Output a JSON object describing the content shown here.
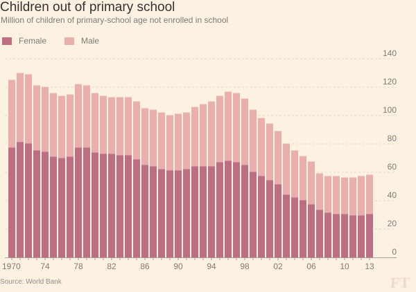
{
  "chart_data": {
    "type": "bar",
    "stacked": true,
    "title": "Children out of primary school",
    "subtitle": "Million of children of primary-school age not enrolled in school",
    "xlabel": "",
    "ylabel": "",
    "ylim": [
      0,
      140
    ],
    "yticks": [
      0,
      20,
      40,
      60,
      80,
      100,
      120,
      140
    ],
    "grid": true,
    "legend_position": "top-left",
    "categories": [
      1970,
      1971,
      1972,
      1973,
      1974,
      1975,
      1976,
      1977,
      1978,
      1979,
      1980,
      1981,
      1982,
      1983,
      1984,
      1985,
      1986,
      1987,
      1988,
      1989,
      1990,
      1991,
      1992,
      1993,
      1994,
      1995,
      1996,
      1997,
      1998,
      1999,
      2000,
      2001,
      2002,
      2003,
      2004,
      2005,
      2006,
      2007,
      2008,
      2009,
      2010,
      2011,
      2012,
      2013
    ],
    "xtick_labels": [
      {
        "year": 1970,
        "label": "1970"
      },
      {
        "year": 1974,
        "label": "74"
      },
      {
        "year": 1978,
        "label": "78"
      },
      {
        "year": 1982,
        "label": "82"
      },
      {
        "year": 1986,
        "label": "86"
      },
      {
        "year": 1990,
        "label": "90"
      },
      {
        "year": 1994,
        "label": "94"
      },
      {
        "year": 1998,
        "label": "98"
      },
      {
        "year": 2002,
        "label": "02"
      },
      {
        "year": 2006,
        "label": "06"
      },
      {
        "year": 2010,
        "label": "10"
      },
      {
        "year": 2013,
        "label": "13"
      }
    ],
    "series": [
      {
        "name": "Female",
        "color": "#bd6e82",
        "values": [
          77.6,
          81.5,
          80.5,
          75.6,
          74.6,
          71.2,
          70.2,
          71.2,
          77.6,
          77.6,
          74.1,
          73.2,
          73.2,
          72.2,
          72.2,
          69.3,
          65.4,
          64.4,
          62.4,
          61.5,
          61.5,
          62.4,
          64.4,
          64.4,
          64.4,
          67.3,
          68.3,
          67.3,
          65.4,
          60.5,
          57.6,
          54.6,
          51.7,
          44.4,
          42.4,
          40.5,
          37.6,
          33.7,
          31.7,
          30.7,
          30.7,
          29.8,
          29.8,
          30.7
        ]
      },
      {
        "name": "Male",
        "color": "#e9afad",
        "values": [
          47.8,
          48.7,
          48.8,
          45.9,
          45.9,
          44.9,
          43.9,
          43.9,
          44.8,
          43.9,
          42.0,
          40.9,
          40.0,
          41.0,
          41.0,
          40.9,
          40.0,
          40.0,
          40.0,
          39.0,
          40.0,
          40.0,
          41.9,
          43.9,
          45.8,
          46.8,
          48.8,
          48.8,
          46.8,
          43.9,
          40.9,
          40.0,
          37.6,
          36.1,
          33.2,
          31.2,
          30.2,
          25.8,
          25.9,
          26.9,
          25.9,
          26.8,
          27.8,
          27.8
        ]
      }
    ]
  },
  "legend": {
    "female_label": "Female",
    "male_label": "Male",
    "female_color": "#bd6e82",
    "male_color": "#e9afad"
  },
  "source": "Source: World Bank",
  "logo": "FT"
}
